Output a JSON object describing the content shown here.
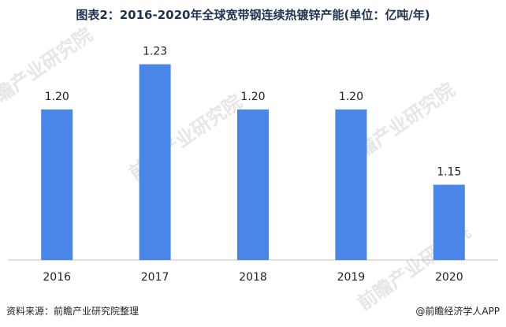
{
  "title": "图表2：2016-2020年全球宽带钢连续热镀锌产能(单位：亿吨/年)",
  "footer": {
    "source": "资料来源：前瞻产业研究院整理",
    "brand": "@前瞻经济学人APP"
  },
  "watermark": "前瞻产业研究院",
  "colors": {
    "bar": "#4a86e8",
    "axis": "#c0c0c0",
    "text": "#222222"
  },
  "chart_data": {
    "type": "bar",
    "title": "图表2：2016-2020年全球宽带钢连续热镀锌产能(单位：亿吨/年)",
    "categories": [
      "2016",
      "2017",
      "2018",
      "2019",
      "2020"
    ],
    "values": [
      1.2,
      1.23,
      1.2,
      1.2,
      1.15
    ],
    "data_labels": [
      "1.20",
      "1.23",
      "1.20",
      "1.20",
      "1.15"
    ],
    "ylim": [
      1.1,
      1.235
    ],
    "grid": false,
    "legend": "none"
  }
}
